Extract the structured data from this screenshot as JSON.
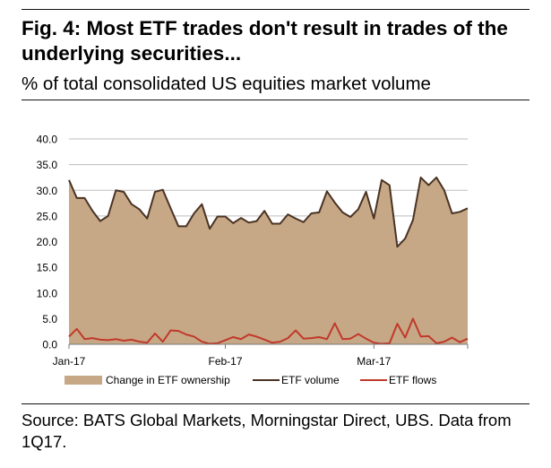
{
  "header": {
    "title": "Fig. 4: Most ETF trades don't result in trades of the underlying securities...",
    "subtitle": "% of total consolidated US equities market volume"
  },
  "footer": {
    "source": "Source: BATS Global Markets, Morningstar Direct, UBS. Data from 1Q17."
  },
  "colors": {
    "area": "#c7a886",
    "etf_volume": "#4a3324",
    "etf_flows": "#c0392b",
    "grid": "#bdbdbd"
  },
  "chart_data": {
    "type": "area",
    "title": "Fig. 4: Most ETF trades don't result in trades of the underlying securities...",
    "subtitle": "% of total consolidated US equities market volume",
    "xlabel": "",
    "ylabel": "",
    "ylim": [
      0,
      40
    ],
    "yticks": [
      "40.0",
      "35.0",
      "30.0",
      "25.0",
      "20.0",
      "15.0",
      "10.0",
      "5.0",
      "0.0"
    ],
    "ytick_values": [
      40,
      35,
      30,
      25,
      20,
      15,
      10,
      5,
      0
    ],
    "xticks": [
      {
        "label": "Jan-17",
        "index": 0
      },
      {
        "label": "Feb-17",
        "index": 20
      },
      {
        "label": "Mar-17",
        "index": 39
      }
    ],
    "grid": true,
    "legend_position": "bottom",
    "series": [
      {
        "name": "Change in ETF ownership",
        "kind": "area",
        "values": [
          32.0,
          28.5,
          28.5,
          26.0,
          24.0,
          25.0,
          30.0,
          29.7,
          27.3,
          26.3,
          24.5,
          29.7,
          30.1,
          26.5,
          23.0,
          23.0,
          25.5,
          27.3,
          22.5,
          24.9,
          24.9,
          23.6,
          24.6,
          23.7,
          24.0,
          26.0,
          23.5,
          23.5,
          25.3,
          24.5,
          23.8,
          25.5,
          25.7,
          29.8,
          27.6,
          25.7,
          24.8,
          26.3,
          29.7,
          24.5,
          32.0,
          31.0,
          19.0,
          20.6,
          24.2,
          32.5,
          31.0,
          32.5,
          30.0,
          25.5,
          25.8,
          26.5
        ]
      },
      {
        "name": "ETF volume",
        "kind": "line",
        "values": [
          32.0,
          28.5,
          28.5,
          26.0,
          24.0,
          25.0,
          30.0,
          29.7,
          27.3,
          26.3,
          24.5,
          29.7,
          30.1,
          26.5,
          23.0,
          23.0,
          25.5,
          27.3,
          22.5,
          24.9,
          24.9,
          23.6,
          24.6,
          23.7,
          24.0,
          26.0,
          23.5,
          23.5,
          25.3,
          24.5,
          23.8,
          25.5,
          25.7,
          29.8,
          27.6,
          25.7,
          24.8,
          26.3,
          29.7,
          24.5,
          32.0,
          31.0,
          19.0,
          20.6,
          24.2,
          32.5,
          31.0,
          32.5,
          30.0,
          25.5,
          25.8,
          26.5
        ]
      },
      {
        "name": "ETF flows",
        "kind": "line",
        "values": [
          1.5,
          3.0,
          1.0,
          1.2,
          0.9,
          0.8,
          1.0,
          0.7,
          0.9,
          0.5,
          0.3,
          2.1,
          0.5,
          2.7,
          2.6,
          1.9,
          1.5,
          0.5,
          0.1,
          0.2,
          0.8,
          1.4,
          1.0,
          1.9,
          1.5,
          0.9,
          0.3,
          0.5,
          1.2,
          2.7,
          1.1,
          1.2,
          1.4,
          1.0,
          4.1,
          1.0,
          1.1,
          2.0,
          1.1,
          0.3,
          0.1,
          0.2,
          4.0,
          1.3,
          5.0,
          1.5,
          1.6,
          0.2,
          0.5,
          1.3,
          0.4,
          1.1
        ]
      }
    ]
  }
}
